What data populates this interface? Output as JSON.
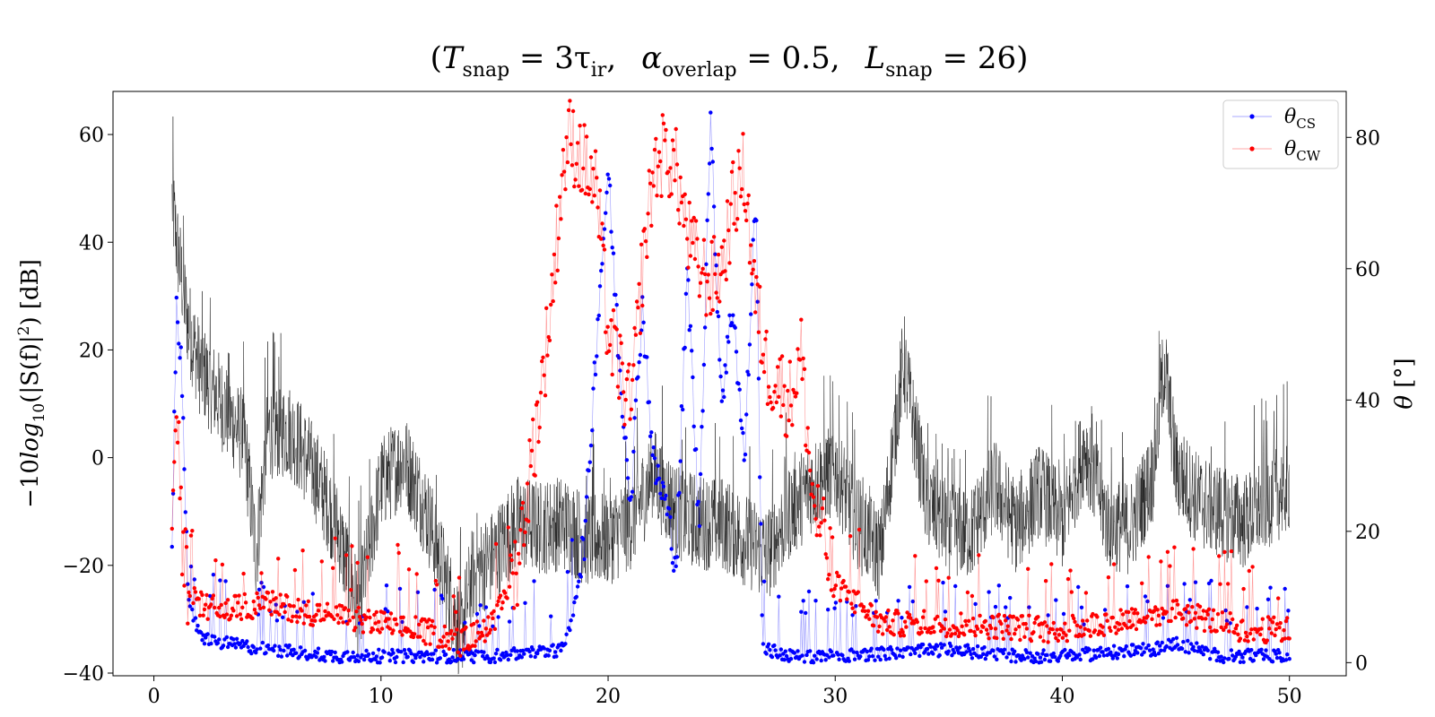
{
  "chart_data": {
    "type": "line",
    "title": "(T_snap = 3τ_ir,   α_overlap = 0.5,   L_snap = 26)",
    "title_parts": {
      "open": "(",
      "t_main": "T",
      "t_sub": "snap",
      "t_eq": " = 3τ",
      "t_eq_sub": "ir",
      "t_sep": ",",
      "a_main": "α",
      "a_sub": "overlap",
      "a_eq": " = 0.5,",
      "l_main": "L",
      "l_sub": "snap",
      "l_eq": " = 26)"
    },
    "ylabel_left": "−10log10(|S(f)|²) [dB]",
    "ylabel_left_parts": {
      "pre": "−10",
      "log": "log",
      "sub": "10",
      "post": "(|S(f)|",
      "sup": "2",
      "end": ") [dB]"
    },
    "ylabel_right": "θ [°]",
    "ylabel_right_parts": {
      "sym": "θ",
      "unit": " [°]"
    },
    "xlim": [
      -1.8,
      52.5
    ],
    "ylim_left": [
      -40.5,
      68
    ],
    "ylim_right": [
      -2,
      87
    ],
    "x_ticks": [
      0,
      10,
      20,
      30,
      40,
      50
    ],
    "x_tick_labels": [
      "0",
      "10",
      "20",
      "30",
      "40",
      "50"
    ],
    "y_left_ticks": [
      -40,
      -20,
      0,
      20,
      40,
      60
    ],
    "y_left_tick_labels": [
      "−40",
      "−20",
      "0",
      "20",
      "40",
      "60"
    ],
    "y_right_ticks": [
      0,
      20,
      40,
      60,
      80
    ],
    "y_right_tick_labels": [
      "0",
      "20",
      "40",
      "60",
      "80"
    ],
    "grid": false,
    "legend_position": "top-right",
    "legend": [
      {
        "sym": "θ",
        "sub": "CS",
        "color": "#0000ff"
      },
      {
        "sym": "θ",
        "sub": "CW",
        "color": "#ff0000"
      }
    ],
    "series": [
      {
        "axis": "left",
        "color": "#000000",
        "style": "thin-line-noisy",
        "x": [
          0.8,
          1.0,
          1.5,
          2.0,
          3.0,
          4.0,
          4.5,
          5.0,
          6.0,
          7.0,
          8.0,
          9.0,
          10.0,
          11.0,
          12.0,
          13.0,
          13.5,
          14.0,
          15.0,
          16.0,
          17.0,
          18.0,
          19.0,
          20.0,
          21.0,
          22.0,
          23.0,
          24.0,
          25.0,
          26.0,
          27.0,
          28.0,
          29.0,
          30.0,
          31.0,
          32.0,
          33.0,
          34.0,
          35.0,
          36.0,
          37.0,
          38.0,
          39.0,
          40.0,
          41.0,
          42.0,
          43.0,
          44.0,
          44.5,
          45.0,
          46.0,
          47.0,
          48.0,
          49.0,
          50.0
        ],
        "y": [
          48,
          40,
          25,
          17,
          10,
          3,
          -18,
          5,
          5,
          -2,
          -12,
          -28,
          -5,
          0,
          -10,
          -25,
          -33,
          -22,
          -18,
          -12,
          -13,
          -12,
          -15,
          -15,
          -12,
          -3,
          -10,
          -12,
          -12,
          -15,
          -18,
          -10,
          -5,
          -2,
          -12,
          -18,
          18,
          -8,
          -13,
          -14,
          -5,
          -13,
          -6,
          -12,
          2,
          -12,
          -13,
          -3,
          18,
          -2,
          -8,
          -10,
          -12,
          -8,
          -5
        ]
      },
      {
        "name": "θ_CS",
        "axis": "right",
        "color": "#0000ff",
        "x": [
          0.8,
          1.0,
          1.2,
          1.5,
          2.0,
          3.0,
          5.0,
          8.0,
          10.0,
          13.0,
          15.0,
          18.0,
          18.5,
          19.0,
          19.5,
          20.0,
          20.5,
          21.0,
          21.5,
          22.0,
          22.5,
          23.0,
          23.5,
          24.0,
          24.5,
          25.0,
          25.5,
          26.0,
          26.5,
          26.8,
          27.0,
          28.0,
          30.0,
          35.0,
          38.0,
          40.0,
          44.0,
          45.0,
          47.0,
          50.0
        ],
        "y": [
          20,
          55,
          45,
          10,
          4,
          3,
          2,
          1,
          1,
          1,
          1,
          2,
          8,
          20,
          50,
          75,
          45,
          25,
          55,
          30,
          25,
          15,
          60,
          20,
          83,
          40,
          55,
          30,
          72,
          3,
          2,
          1,
          1,
          2,
          1,
          1,
          2,
          3,
          1,
          1
        ]
      },
      {
        "name": "θ_CW",
        "axis": "right",
        "color": "#ff0000",
        "x": [
          0.8,
          1.0,
          1.2,
          1.5,
          2.0,
          3.0,
          5.0,
          8.0,
          10.0,
          13.0,
          13.5,
          15.0,
          16.0,
          17.0,
          17.5,
          18.0,
          18.3,
          18.8,
          19.5,
          20.0,
          20.5,
          21.0,
          21.5,
          22.0,
          22.5,
          23.0,
          23.5,
          24.0,
          24.5,
          25.0,
          25.5,
          26.0,
          26.5,
          27.0,
          28.0,
          28.5,
          29.0,
          30.0,
          32.0,
          35.0,
          40.0,
          45.0,
          48.0,
          50.0
        ],
        "y": [
          22,
          40,
          20,
          12,
          9,
          8,
          9,
          7,
          6,
          4,
          3,
          6,
          15,
          40,
          55,
          75,
          80,
          77,
          72,
          50,
          45,
          38,
          60,
          75,
          78,
          75,
          65,
          60,
          58,
          60,
          70,
          75,
          55,
          45,
          40,
          47,
          25,
          12,
          6,
          6,
          5,
          8,
          5,
          5
        ]
      }
    ]
  }
}
